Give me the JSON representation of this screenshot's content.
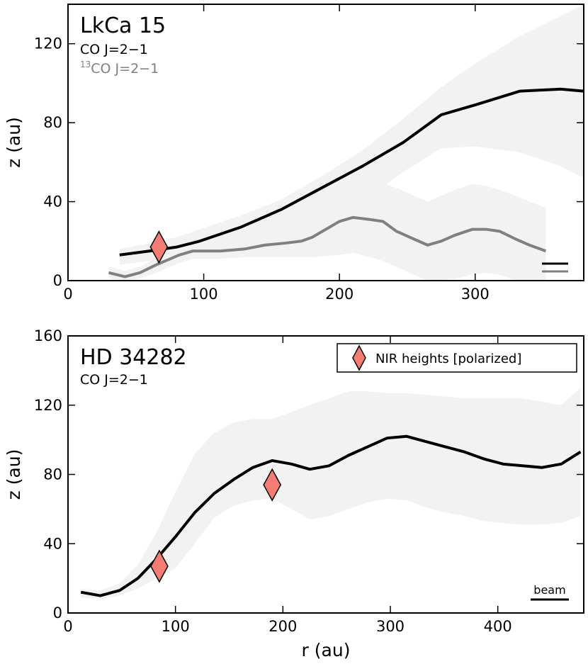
{
  "chart_data": [
    {
      "type": "line",
      "title": "LkCa 15",
      "xlabel": "",
      "ylabel": "z (au)",
      "xlim": [
        0,
        380
      ],
      "ylim": [
        0,
        140
      ],
      "xticks": [
        0,
        100,
        200,
        300
      ],
      "yticks": [
        0,
        40,
        80,
        120
      ],
      "labels": {
        "co": "CO J=2−1",
        "co13_sup": "13",
        "co13_main": "CO J=2−1"
      },
      "colors": {
        "co": "#000000",
        "co13": "#808080",
        "band": "#f2f2f2",
        "marker": "#f47c72"
      },
      "series": [
        {
          "name": "CO J=2−1",
          "x": [
            38,
            60,
            80,
            97,
            127,
            157,
            187,
            217,
            247,
            275,
            300,
            333,
            363,
            380
          ],
          "y": [
            13,
            15,
            17,
            20,
            27,
            36,
            47,
            58,
            70,
            84,
            89,
            96,
            97,
            96
          ],
          "band_upper": [
            16,
            19,
            22,
            26,
            33,
            41,
            53,
            66,
            82,
            98,
            110,
            124,
            134,
            140
          ],
          "band_lower": [
            8,
            10,
            12,
            14,
            19,
            24,
            30,
            40,
            55,
            67,
            68,
            65,
            58,
            52
          ]
        },
        {
          "name": "13CO J=2−1",
          "x": [
            30,
            42,
            53,
            65,
            82,
            92,
            112,
            130,
            145,
            160,
            172,
            180,
            200,
            210,
            222,
            232,
            242,
            255,
            265,
            275,
            285,
            298,
            308,
            318,
            330,
            340,
            352
          ],
          "y": [
            4,
            2,
            4,
            8,
            13,
            15,
            15,
            16,
            18,
            19,
            20,
            22,
            30,
            32,
            31,
            30,
            25,
            21,
            18,
            20,
            23,
            26,
            26,
            25,
            21,
            18,
            15
          ],
          "band_upper": [
            7,
            5,
            7,
            11,
            16,
            18,
            19,
            21,
            23,
            25,
            27,
            31,
            38,
            46,
            48,
            49,
            47,
            43,
            40,
            43,
            46,
            49,
            48,
            46,
            43,
            40,
            37
          ],
          "band_lower": [
            1,
            0,
            1,
            4,
            9,
            11,
            11,
            12,
            12,
            12,
            12,
            12,
            13,
            14,
            12,
            10,
            7,
            3,
            0,
            0,
            1,
            3,
            4,
            3,
            0,
            0,
            0
          ]
        }
      ],
      "markers": [
        {
          "name": "NIR heights [polarized]",
          "x": 67,
          "y": 17
        }
      ],
      "beam_lines": [
        "co",
        "co13"
      ]
    },
    {
      "type": "line",
      "title": "HD 34282",
      "xlabel": "r (au)",
      "ylabel": "z (au)",
      "xlim": [
        0,
        480
      ],
      "ylim": [
        0,
        160
      ],
      "xticks": [
        0,
        100,
        200,
        300,
        400
      ],
      "yticks": [
        0,
        40,
        80,
        120,
        160
      ],
      "labels": {
        "co": "CO J=2−1",
        "beam": "beam"
      },
      "colors": {
        "co": "#000000",
        "band": "#f2f2f2",
        "marker": "#f47c72"
      },
      "series": [
        {
          "name": "CO J=2−1",
          "x": [
            12,
            30,
            48,
            65,
            82,
            100,
            118,
            136,
            154,
            172,
            190,
            208,
            225,
            243,
            261,
            279,
            297,
            315,
            333,
            351,
            369,
            387,
            405,
            423,
            441,
            459,
            477
          ],
          "y": [
            12,
            10,
            13,
            20,
            31,
            44,
            58,
            69,
            77,
            84,
            88,
            86,
            83,
            85,
            91,
            96,
            101,
            102,
            99,
            96,
            93,
            89,
            86,
            85,
            84,
            86,
            93
          ],
          "band_upper": [
            14,
            13,
            17,
            28,
            46,
            70,
            92,
            104,
            110,
            112,
            112,
            116,
            120,
            124,
            128,
            128,
            127,
            127,
            126,
            125,
            124,
            124,
            124,
            124,
            122,
            120,
            130
          ],
          "band_lower": [
            9,
            8,
            10,
            14,
            20,
            26,
            40,
            55,
            62,
            65,
            66,
            60,
            54,
            56,
            60,
            64,
            66,
            65,
            61,
            58,
            56,
            53,
            52,
            51,
            51,
            52,
            56
          ]
        }
      ],
      "markers": [
        {
          "name": "NIR heights [polarized]",
          "x": 85,
          "y": 27
        },
        {
          "name": "NIR heights [polarized]",
          "x": 190,
          "y": 74
        }
      ],
      "legend": {
        "label": "NIR heights [polarized]",
        "placement": "top-right"
      }
    }
  ]
}
